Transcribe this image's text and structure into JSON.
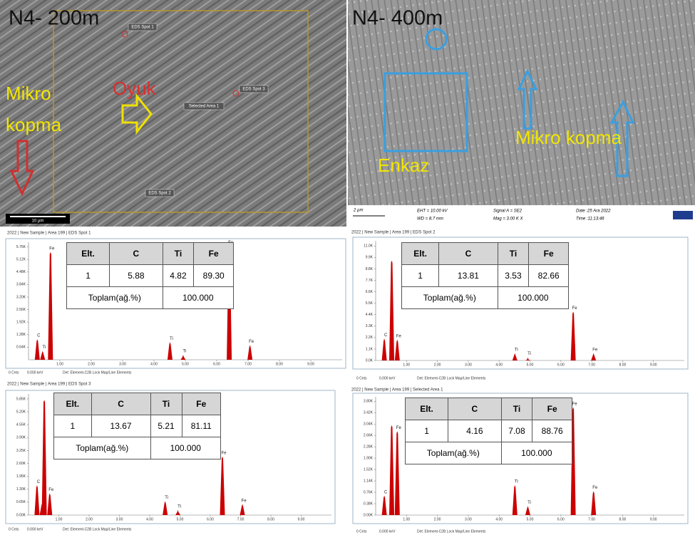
{
  "sem_images": [
    {
      "label": "N4- 200m",
      "annotations": [
        "Mikro",
        "kopma",
        "Oyuk"
      ],
      "spots": [
        "EDS Spot 1",
        "Selected Area 1",
        "EDS Spot 3",
        "EDS Spot 2"
      ],
      "scale_bar": "10 µm"
    },
    {
      "label": "N4- 400m",
      "annotations": [
        "Enkaz",
        "Mikro kopma"
      ],
      "scale_bar": "2 µm",
      "info": [
        "EHT = 10.00 kV",
        "Signal A = SE2",
        "Date :25 Ara 2022",
        "WD = 8.7 mm",
        "Mag = 3.00 K X",
        "Time :11:13:46"
      ]
    }
  ],
  "eds_panels": [
    {
      "header": "2022 | New Sample | Area 199 | EDS Spot 1",
      "xlim": [
        0,
        10
      ],
      "ylim": [
        0,
        6000
      ],
      "yticks": [
        {
          "value": 640,
          "label": "0.64K"
        },
        {
          "value": 1280,
          "label": "1.28K"
        },
        {
          "value": 1920,
          "label": "1.92K"
        },
        {
          "value": 2560,
          "label": "2.56K"
        },
        {
          "value": 3200,
          "label": "3.20K"
        },
        {
          "value": 3840,
          "label": "3.84K"
        },
        {
          "value": 4480,
          "label": "4.48K"
        },
        {
          "value": 5120,
          "label": "5.12K"
        },
        {
          "value": 5760,
          "label": "5.76K"
        }
      ],
      "xticks": [
        {
          "value": 1,
          "label": "1.00"
        },
        {
          "value": 2,
          "label": "2.00"
        },
        {
          "value": 3,
          "label": "3.00"
        },
        {
          "value": 4,
          "label": "4.00"
        },
        {
          "value": 5,
          "label": "5.00"
        },
        {
          "value": 6,
          "label": "6.00"
        },
        {
          "value": 7,
          "label": "7.00"
        },
        {
          "value": 8,
          "label": "8.00"
        },
        {
          "value": 9,
          "label": "9.00"
        }
      ],
      "peaks": [
        {
          "label": "C",
          "x": 0.28,
          "y": 1050
        },
        {
          "label": "Ti",
          "x": 0.45,
          "y": 450
        },
        {
          "label": "Fe",
          "x": 0.7,
          "y": 5500
        },
        {
          "label": "Ti",
          "x": 4.51,
          "y": 900
        },
        {
          "label": "Ti",
          "x": 4.93,
          "y": 250
        },
        {
          "label": "Fe",
          "x": 6.4,
          "y": 5800
        },
        {
          "label": "Fe",
          "x": 7.06,
          "y": 750
        }
      ],
      "table": {
        "header": [
          "Elt.",
          "C",
          "Ti",
          "Fe"
        ],
        "row": [
          "1",
          "5.88",
          "4.82",
          "89.30"
        ],
        "total": [
          "Toplam(ağ.%)",
          "100.000"
        ]
      },
      "footer": [
        "0 Cnts",
        "0.000 keV",
        "Det: Element-C2B Lock Map/Line Elements"
      ]
    },
    {
      "header": "2022 | New Sample | Area 199 | EDS Spot 2",
      "xlim": [
        0,
        10
      ],
      "ylim": [
        0,
        11500
      ],
      "yticks": [
        {
          "value": 0,
          "label": "0.0K"
        },
        {
          "value": 1100,
          "label": "1.1K"
        },
        {
          "value": 2200,
          "label": "2.2K"
        },
        {
          "value": 3300,
          "label": "3.3K"
        },
        {
          "value": 4400,
          "label": "4.4K"
        },
        {
          "value": 5500,
          "label": "5.5K"
        },
        {
          "value": 6600,
          "label": "6.6K"
        },
        {
          "value": 7700,
          "label": "7.7K"
        },
        {
          "value": 8800,
          "label": "8.8K"
        },
        {
          "value": 9900,
          "label": "9.9K"
        },
        {
          "value": 11000,
          "label": "11.0K"
        }
      ],
      "xticks": [
        {
          "value": 1,
          "label": "1.00"
        },
        {
          "value": 2,
          "label": "2.00"
        },
        {
          "value": 3,
          "label": "3.00"
        },
        {
          "value": 4,
          "label": "4.00"
        },
        {
          "value": 5,
          "label": "5.00"
        },
        {
          "value": 6,
          "label": "6.00"
        },
        {
          "value": 7,
          "label": "7.00"
        },
        {
          "value": 8,
          "label": "8.00"
        },
        {
          "value": 9,
          "label": "9.00"
        }
      ],
      "peaks": [
        {
          "label": "C",
          "x": 0.28,
          "y": 2100
        },
        {
          "label": null,
          "x": 0.52,
          "y": 9600
        },
        {
          "label": "Fe",
          "x": 0.7,
          "y": 2000
        },
        {
          "label": "Ti",
          "x": 4.51,
          "y": 700
        },
        {
          "label": "Ti",
          "x": 4.93,
          "y": 300
        },
        {
          "label": "Fe",
          "x": 6.4,
          "y": 4700
        },
        {
          "label": "Fe",
          "x": 7.06,
          "y": 700
        }
      ],
      "table": {
        "header": [
          "Elt.",
          "C",
          "Ti",
          "Fe"
        ],
        "row": [
          "1",
          "13.81",
          "3.53",
          "82.66"
        ],
        "total": [
          "Toplam(ağ.%)",
          "100.000"
        ]
      },
      "footer": [
        "0 Cnts",
        "0.000 keV",
        "Det: Element-C2B Lock Map/Line Elements"
      ]
    },
    {
      "header": "2022 | New Sample | Area 199 | EDS Spot 3",
      "xlim": [
        0,
        10
      ],
      "ylim": [
        0,
        6100
      ],
      "yticks": [
        {
          "value": 0,
          "label": "0.00K"
        },
        {
          "value": 650,
          "label": "0.65K"
        },
        {
          "value": 1300,
          "label": "1.30K"
        },
        {
          "value": 1950,
          "label": "1.95K"
        },
        {
          "value": 2600,
          "label": "2.60K"
        },
        {
          "value": 3250,
          "label": "3.25K"
        },
        {
          "value": 3900,
          "label": "3.90K"
        },
        {
          "value": 4550,
          "label": "4.55K"
        },
        {
          "value": 5200,
          "label": "5.20K"
        },
        {
          "value": 5850,
          "label": "5.85K"
        }
      ],
      "xticks": [
        {
          "value": 1,
          "label": "1.00"
        },
        {
          "value": 2,
          "label": "2.00"
        },
        {
          "value": 3,
          "label": "3.00"
        },
        {
          "value": 4,
          "label": "4.00"
        },
        {
          "value": 5,
          "label": "5.00"
        },
        {
          "value": 6,
          "label": "6.00"
        },
        {
          "value": 7,
          "label": "7.00"
        },
        {
          "value": 8,
          "label": "8.00"
        },
        {
          "value": 9,
          "label": "9.00"
        }
      ],
      "peaks": [
        {
          "label": "C",
          "x": 0.28,
          "y": 1500
        },
        {
          "label": "Ti",
          "x": 0.45,
          "y": 600
        },
        {
          "label": null,
          "x": 0.52,
          "y": 5800
        },
        {
          "label": "Fe",
          "x": 0.7,
          "y": 1100
        },
        {
          "label": "Ti",
          "x": 4.51,
          "y": 700
        },
        {
          "label": "Ti",
          "x": 4.93,
          "y": 250
        },
        {
          "label": "Fe",
          "x": 6.4,
          "y": 2950
        },
        {
          "label": "Fe",
          "x": 7.06,
          "y": 550
        }
      ],
      "table": {
        "header": [
          "Elt.",
          "C",
          "Ti",
          "Fe"
        ],
        "row": [
          "1",
          "13.67",
          "5.21",
          "81.11"
        ],
        "total": [
          "Toplam(ağ.%)",
          "100.000"
        ]
      },
      "footer": [
        "0 Cnts",
        "0.000 keV",
        "Det: Element-C2B Lock Map/Line Elements"
      ]
    },
    {
      "header": "2022 | New Sample | Area 199 | Selected Area 1",
      "xlim": [
        0,
        10
      ],
      "ylim": [
        0,
        3950
      ],
      "yticks": [
        {
          "value": 0,
          "label": "0.00K"
        },
        {
          "value": 380,
          "label": "0.38K"
        },
        {
          "value": 760,
          "label": "0.76K"
        },
        {
          "value": 1140,
          "label": "1.14K"
        },
        {
          "value": 1520,
          "label": "1.52K"
        },
        {
          "value": 1900,
          "label": "1.90K"
        },
        {
          "value": 2280,
          "label": "2.28K"
        },
        {
          "value": 2660,
          "label": "2.66K"
        },
        {
          "value": 3040,
          "label": "3.04K"
        },
        {
          "value": 3420,
          "label": "3.42K"
        },
        {
          "value": 3800,
          "label": "3.80K"
        }
      ],
      "xticks": [
        {
          "value": 1,
          "label": "1.00"
        },
        {
          "value": 2,
          "label": "2.00"
        },
        {
          "value": 3,
          "label": "3.00"
        },
        {
          "value": 4,
          "label": "4.00"
        },
        {
          "value": 5,
          "label": "5.00"
        },
        {
          "value": 6,
          "label": "6.00"
        },
        {
          "value": 7,
          "label": "7.00"
        },
        {
          "value": 8,
          "label": "8.00"
        },
        {
          "value": 9,
          "label": "9.00"
        }
      ],
      "peaks": [
        {
          "label": "C",
          "x": 0.28,
          "y": 650
        },
        {
          "label": null,
          "x": 0.52,
          "y": 3000
        },
        {
          "label": "Fe",
          "x": 0.7,
          "y": 2800
        },
        {
          "label": "Ti",
          "x": 4.51,
          "y": 1000
        },
        {
          "label": "Ti",
          "x": 4.93,
          "y": 300
        },
        {
          "label": "Fe",
          "x": 6.4,
          "y": 3600
        },
        {
          "label": "Fe",
          "x": 7.06,
          "y": 800
        }
      ],
      "table": {
        "header": [
          "Elt.",
          "C",
          "Ti",
          "Fe"
        ],
        "row": [
          "1",
          "4.16",
          "7.08",
          "88.76"
        ],
        "total": [
          "Toplam(ağ.%)",
          "100.000"
        ]
      },
      "footer": [
        "0 Cnts",
        "0.000 keV",
        "Det: Element-C2B Lock Map/Line Elements"
      ]
    }
  ]
}
